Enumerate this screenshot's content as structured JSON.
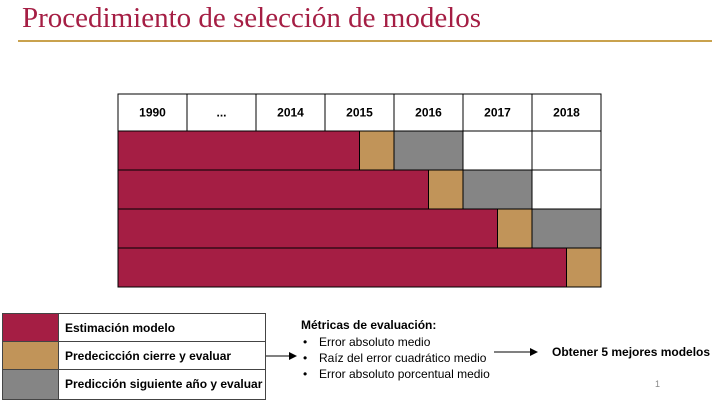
{
  "title": "Procedimiento de selección de modelos",
  "colors": {
    "title": "#A51E44",
    "rule": "#C9A24E",
    "estimation": "#A51E44",
    "prediction_close": "#C19459",
    "prediction_next": "#858585"
  },
  "years": [
    "1990",
    "...",
    "2014",
    "2015",
    "2016",
    "2017",
    "2018"
  ],
  "rows": [
    {
      "estimation_end": "2015",
      "prediction_close": "2015",
      "prediction_next": "2016"
    },
    {
      "estimation_end": "2016",
      "prediction_close": "2016",
      "prediction_next": "2017"
    },
    {
      "estimation_end": "2017",
      "prediction_close": "2017",
      "prediction_next": "2018"
    },
    {
      "estimation_end": "2018",
      "prediction_close": "2018",
      "prediction_next": null
    }
  ],
  "legend": [
    {
      "label": "Estimación modelo",
      "color_key": "estimation"
    },
    {
      "label": "Predecicción cierre y evaluar",
      "color_key": "prediction_close"
    },
    {
      "label": "Predicción siguiente  año y evaluar",
      "color_key": "prediction_next"
    }
  ],
  "metrics": {
    "heading": "Métricas de evaluación:",
    "items": [
      "Error absoluto medio",
      "Raíz del error cuadrático medio",
      "Error absoluto porcentual medio"
    ]
  },
  "result": "Obtener 5 mejores modelos",
  "page_number": "1"
}
